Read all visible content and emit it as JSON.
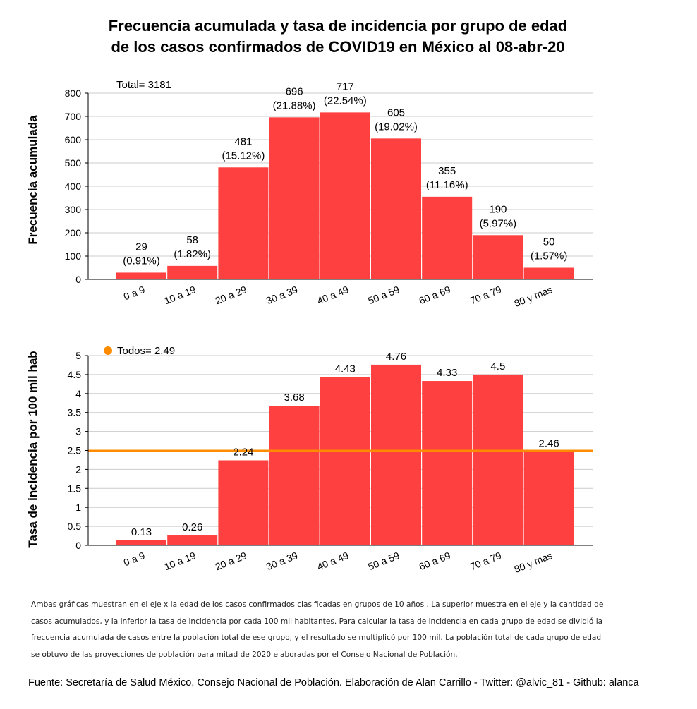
{
  "title_line1": "Frecuencia acumulada y tasa de incidencia por grupo de edad",
  "title_line2": "de los casos confirmados de COVID19 en México al 08-abr-20",
  "note": "Ambas gráficas muestran en el eje x la edad de los casos confirmados clasificadas en grupos de 10 años . La superior muestra en el eje y la cantidad de casos acumulados, y la inferior la tasa de incidencia por cada 100 mil habitantes. Para calcular la tasa de incidencia en cada grupo de edad se dividió la frecuencia acumulada de casos entre la población total de ese grupo, y el resultado se multiplicó por 100 mil. La población total de cada grupo de edad se obtuvo de las proyecciones de población para mitad de 2020 elaboradas por el Consejo Nacional de Población.",
  "source": "Fuente: Secretaría de Salud México, Consejo Nacional de Población. Elaboración de Alan Carrillo - Twitter: @alvic_81 - Github: alanca",
  "colors": {
    "bar": "#ff4040",
    "reference": "#ff8c00",
    "grid": "#cccccc"
  },
  "chart_data": [
    {
      "type": "bar",
      "ylabel": "Frecuencia acumulada",
      "annotation": "Total= 3181",
      "ylim": [
        0,
        800
      ],
      "yticks": [
        0,
        100,
        200,
        300,
        400,
        500,
        600,
        700,
        800
      ],
      "grid": true,
      "categories": [
        "0 a 9",
        "10 a 19",
        "20 a 29",
        "30 a 39",
        "40 a 49",
        "50 a 59",
        "60 a 69",
        "70 a 79",
        "80 y mas"
      ],
      "values": [
        29,
        58,
        481,
        696,
        717,
        605,
        355,
        190,
        50
      ],
      "percent_labels": [
        "(0.91%)",
        "(1.82%)",
        "(15.12%)",
        "(21.88%)",
        "(22.54%)",
        "(19.02%)",
        "(11.16%)",
        "(5.97%)",
        "(1.57%)"
      ]
    },
    {
      "type": "bar",
      "ylabel": "Tasa de incidencia por 100 mil hab",
      "ylim": [
        0,
        5
      ],
      "yticks": [
        0,
        0.5,
        1,
        1.5,
        2,
        2.5,
        3,
        3.5,
        4,
        4.5,
        5
      ],
      "grid": true,
      "categories": [
        "0 a 9",
        "10 a 19",
        "20 a 29",
        "30 a 39",
        "40 a 49",
        "50 a 59",
        "60 a 69",
        "70 a 79",
        "80 y mas"
      ],
      "values": [
        0.13,
        0.26,
        2.24,
        3.68,
        4.43,
        4.76,
        4.33,
        4.5,
        2.46
      ],
      "reference_line": {
        "label": "Todos= 2.49",
        "value": 2.49
      },
      "legend_position": "top-left"
    }
  ]
}
